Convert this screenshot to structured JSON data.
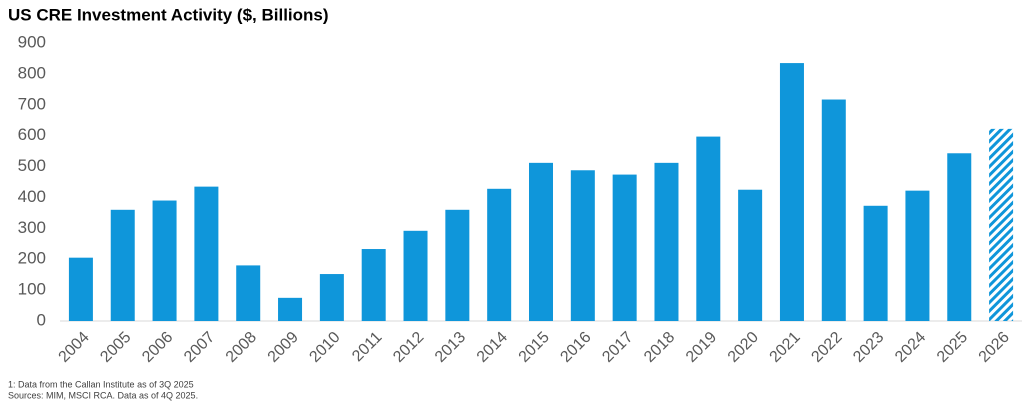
{
  "chart_data": {
    "type": "bar",
    "title": "US CRE Investment Activity ($, Billions)",
    "categories": [
      "2004",
      "2005",
      "2006",
      "2007",
      "2008",
      "2009",
      "2010",
      "2011",
      "2012",
      "2013",
      "2014",
      "2015",
      "2016",
      "2017",
      "2018",
      "2019",
      "2020",
      "2021",
      "2022",
      "2023",
      "2024",
      "2025",
      "2026"
    ],
    "values": [
      205,
      360,
      390,
      435,
      180,
      75,
      152,
      233,
      292,
      360,
      428,
      512,
      488,
      474,
      512,
      597,
      425,
      835,
      717,
      373,
      422,
      543,
      622
    ],
    "hatched": [
      false,
      false,
      false,
      false,
      false,
      false,
      false,
      false,
      false,
      false,
      false,
      false,
      false,
      false,
      false,
      false,
      false,
      false,
      false,
      false,
      false,
      false,
      true
    ],
    "color": "#0f96da",
    "ylim": [
      0,
      900
    ],
    "yticks": [
      0,
      100,
      200,
      300,
      400,
      500,
      600,
      700,
      800,
      900
    ],
    "grid": false,
    "footnotes": [
      "1: Data from the Callan Institute as of 3Q 2025",
      "Sources: MIM, MSCI RCA. Data as of 4Q 2025."
    ]
  }
}
